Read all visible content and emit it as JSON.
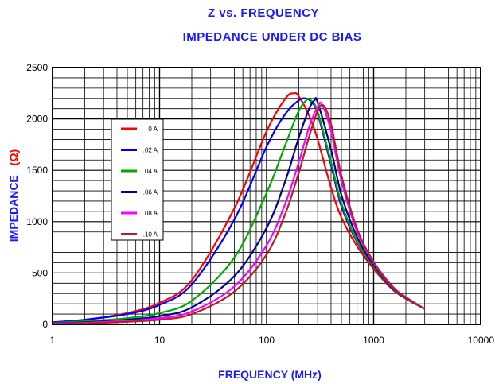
{
  "chart_data": {
    "type": "line",
    "title": "Z vs. FREQUENCY",
    "subtitle": "IMPEDANCE UNDER DC BIAS",
    "xlabel": "FREQUENCY (MHz)",
    "ylabel": "IMPEDANCE",
    "ylabel_unit": "(Ω)",
    "x_scale": "log",
    "xlim": [
      1,
      10000
    ],
    "ylim": [
      0,
      2500
    ],
    "x_ticks": [
      "1",
      "10",
      "100",
      "1000",
      "10000"
    ],
    "y_ticks": [
      "0",
      "500",
      "1000",
      "1500",
      "2000",
      "2500"
    ],
    "grid": true,
    "legend_position": "upper-left inside plot",
    "series": [
      {
        "name": "0 A",
        "color": "#ff0000",
        "x": [
          1,
          2,
          5,
          10,
          20,
          50,
          100,
          150,
          180,
          200,
          250,
          300,
          400,
          500,
          700,
          1000,
          1500,
          2000,
          3000
        ],
        "y": [
          20,
          45,
          110,
          210,
          430,
          1130,
          1880,
          2200,
          2250,
          2220,
          2030,
          1800,
          1330,
          1040,
          760,
          540,
          340,
          250,
          150
        ]
      },
      {
        "name": ".02 A",
        "color": "#0000ff",
        "x": [
          1,
          2,
          5,
          10,
          20,
          50,
          100,
          150,
          200,
          230,
          260,
          300,
          400,
          500,
          700,
          1000,
          1500,
          2000,
          3000
        ],
        "y": [
          20,
          45,
          100,
          190,
          390,
          1020,
          1730,
          2050,
          2180,
          2200,
          2170,
          2050,
          1550,
          1150,
          800,
          560,
          350,
          255,
          150
        ]
      },
      {
        "name": ".04 A",
        "color": "#00aa00",
        "x": [
          1,
          2,
          5,
          10,
          20,
          50,
          100,
          150,
          200,
          240,
          260,
          300,
          400,
          500,
          700,
          1000,
          1500,
          2000,
          3000
        ],
        "y": [
          15,
          30,
          60,
          110,
          230,
          650,
          1280,
          1750,
          2080,
          2190,
          2180,
          2070,
          1580,
          1180,
          810,
          565,
          355,
          258,
          150
        ]
      },
      {
        "name": ".06 A",
        "color": "#000099",
        "x": [
          1,
          2,
          5,
          10,
          20,
          50,
          100,
          150,
          200,
          250,
          280,
          300,
          400,
          500,
          700,
          1000,
          1500,
          2000,
          3000
        ],
        "y": [
          10,
          20,
          45,
          80,
          165,
          470,
          940,
          1400,
          1820,
          2100,
          2180,
          2160,
          1700,
          1260,
          850,
          580,
          360,
          260,
          150
        ]
      },
      {
        "name": ".08 A",
        "color": "#ff00ff",
        "x": [
          1,
          2,
          5,
          10,
          20,
          50,
          100,
          150,
          200,
          250,
          300,
          330,
          400,
          500,
          700,
          1000,
          1500,
          2000,
          3000
        ],
        "y": [
          8,
          15,
          35,
          60,
          125,
          370,
          770,
          1180,
          1580,
          1920,
          2120,
          2140,
          1880,
          1400,
          900,
          600,
          365,
          262,
          150
        ]
      },
      {
        "name": ".10 A",
        "color": "#b22222",
        "x": [
          1,
          2,
          5,
          10,
          20,
          50,
          100,
          150,
          200,
          250,
          300,
          340,
          400,
          500,
          700,
          1000,
          1500,
          2000,
          3000
        ],
        "y": [
          5,
          10,
          25,
          45,
          100,
          320,
          680,
          1080,
          1480,
          1830,
          2080,
          2130,
          1950,
          1450,
          930,
          610,
          370,
          265,
          150
        ]
      }
    ]
  }
}
